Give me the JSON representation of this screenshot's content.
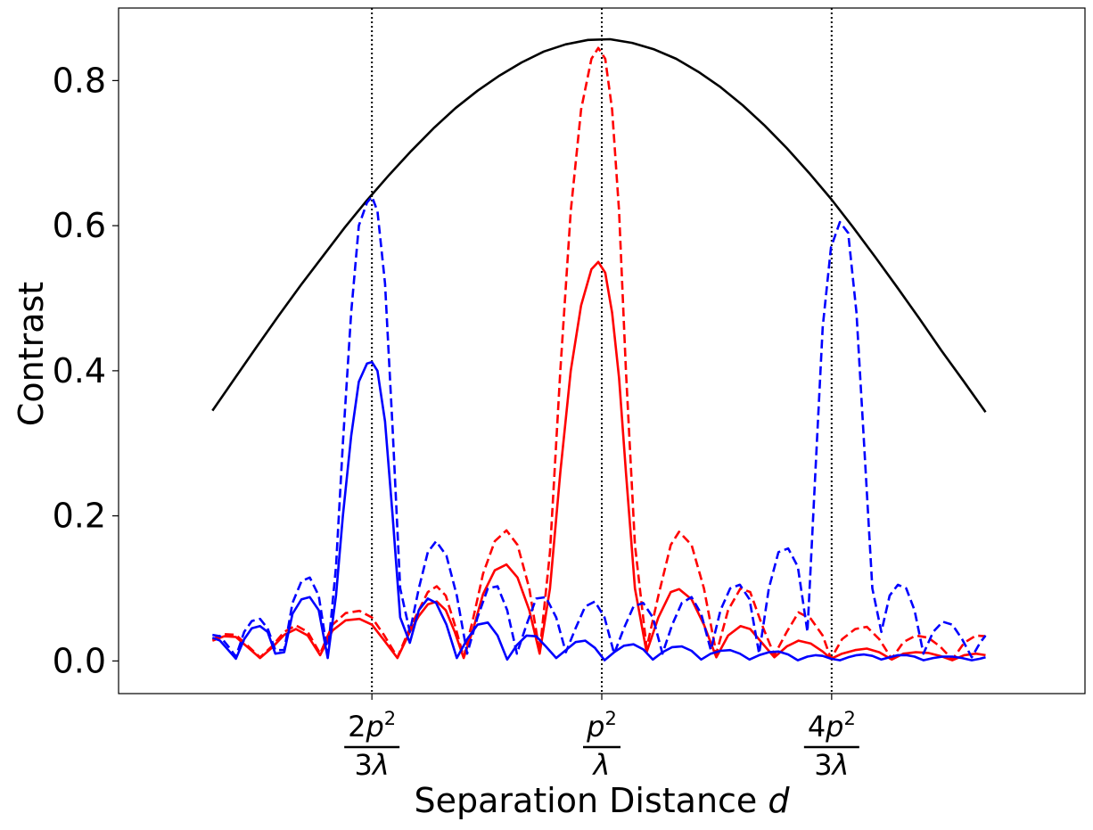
{
  "chart_data": {
    "type": "line",
    "title": "",
    "xlabel": "Separation Distance",
    "xlabel_var": "d",
    "ylabel": "Contrast",
    "xlim": [
      0.93,
      1.07
    ],
    "ylim": [
      -0.045,
      0.9
    ],
    "grid": false,
    "legend": "none",
    "yticks": [
      {
        "value": 0.0,
        "label": "0.0"
      },
      {
        "value": 0.2,
        "label": "0.2"
      },
      {
        "value": 0.4,
        "label": "0.4"
      },
      {
        "value": 0.6,
        "label": "0.6"
      },
      {
        "value": 0.8,
        "label": "0.8"
      }
    ],
    "xticks": [
      {
        "value": 0.9667,
        "numerator_coef": "2",
        "numerator_var": "p",
        "numerator_exp": "2",
        "denominator_coef": "3",
        "denominator_var": "λ"
      },
      {
        "value": 1.0,
        "numerator_coef": "",
        "numerator_var": "p",
        "numerator_exp": "2",
        "denominator_coef": "",
        "denominator_var": "λ"
      },
      {
        "value": 1.0333,
        "numerator_coef": "4",
        "numerator_var": "p",
        "numerator_exp": "2",
        "denominator_coef": "3",
        "denominator_var": "λ"
      }
    ],
    "vlines": [
      0.9667,
      1.0,
      1.0333
    ],
    "series": [
      {
        "color": "#000000",
        "style": "solid",
        "x": [
          0.9436,
          0.9468,
          0.95,
          0.9532,
          0.9564,
          0.9596,
          0.9628,
          0.966,
          0.9692,
          0.9724,
          0.9756,
          0.9788,
          0.982,
          0.9852,
          0.9884,
          0.9916,
          0.9948,
          0.998,
          1.0012,
          1.0044,
          1.0076,
          1.0108,
          1.014,
          1.0172,
          1.0204,
          1.0236,
          1.0268,
          1.03,
          1.0332,
          1.0364,
          1.0396,
          1.0428,
          1.046,
          1.0492,
          1.0524,
          1.0556
        ],
        "y": [
          0.345,
          0.389,
          0.433,
          0.476,
          0.518,
          0.558,
          0.598,
          0.635,
          0.67,
          0.703,
          0.734,
          0.762,
          0.786,
          0.807,
          0.825,
          0.84,
          0.85,
          0.856,
          0.857,
          0.852,
          0.843,
          0.83,
          0.812,
          0.791,
          0.766,
          0.738,
          0.707,
          0.673,
          0.637,
          0.598,
          0.557,
          0.515,
          0.472,
          0.428,
          0.386,
          0.343
        ]
      },
      {
        "color": "#ff0000",
        "style": "dashed",
        "x": [
          0.9436,
          0.9453,
          0.947,
          0.9488,
          0.9505,
          0.9522,
          0.954,
          0.9557,
          0.9574,
          0.9592,
          0.961,
          0.9629,
          0.9649,
          0.9667,
          0.9685,
          0.9704,
          0.9722,
          0.9735,
          0.9748,
          0.9761,
          0.9774,
          0.9787,
          0.98,
          0.9814,
          0.9828,
          0.9845,
          0.9862,
          0.9878,
          0.9895,
          0.991,
          0.9925,
          0.994,
          0.9955,
          0.997,
          0.9985,
          0.9995,
          1.0005,
          1.0015,
          1.0025,
          1.0035,
          1.0048,
          1.0065,
          1.0082,
          1.01,
          1.0112,
          1.013,
          1.0148,
          1.0166,
          1.0183,
          1.0201,
          1.0215,
          1.0232,
          1.025,
          1.0268,
          1.0285,
          1.0303,
          1.032,
          1.0332,
          1.0348,
          1.0367,
          1.0384,
          1.0402,
          1.042,
          1.0437,
          1.0455,
          1.0473,
          1.049,
          1.0508,
          1.0525,
          1.0542,
          1.0556
        ],
        "y": [
          0.03,
          0.037,
          0.036,
          0.02,
          0.005,
          0.02,
          0.04,
          0.049,
          0.04,
          0.01,
          0.05,
          0.066,
          0.069,
          0.06,
          0.035,
          0.005,
          0.045,
          0.07,
          0.095,
          0.103,
          0.09,
          0.05,
          0.005,
          0.06,
          0.12,
          0.165,
          0.18,
          0.16,
          0.1,
          0.012,
          0.15,
          0.4,
          0.62,
          0.76,
          0.83,
          0.845,
          0.83,
          0.76,
          0.62,
          0.4,
          0.16,
          0.018,
          0.09,
          0.16,
          0.178,
          0.16,
          0.1,
          0.01,
          0.07,
          0.1,
          0.095,
          0.05,
          0.008,
          0.04,
          0.067,
          0.058,
          0.035,
          0.003,
          0.03,
          0.044,
          0.047,
          0.03,
          0.003,
          0.026,
          0.035,
          0.032,
          0.02,
          0.002,
          0.025,
          0.035,
          0.034
        ]
      },
      {
        "color": "#ff0000",
        "style": "solid",
        "x": [
          0.9436,
          0.9453,
          0.947,
          0.9488,
          0.9505,
          0.9522,
          0.954,
          0.9557,
          0.9574,
          0.9592,
          0.961,
          0.9629,
          0.9649,
          0.9667,
          0.9685,
          0.9704,
          0.9722,
          0.9735,
          0.9748,
          0.9761,
          0.9774,
          0.9787,
          0.98,
          0.9814,
          0.9828,
          0.9845,
          0.9862,
          0.9878,
          0.9895,
          0.991,
          0.9925,
          0.994,
          0.9955,
          0.997,
          0.9985,
          0.9995,
          1.0005,
          1.0015,
          1.0025,
          1.0035,
          1.0048,
          1.0065,
          1.0082,
          1.01,
          1.0112,
          1.013,
          1.0148,
          1.0166,
          1.0183,
          1.0201,
          1.0215,
          1.0232,
          1.025,
          1.0268,
          1.0285,
          1.0303,
          1.032,
          1.0332,
          1.0348,
          1.0367,
          1.0384,
          1.0402,
          1.042,
          1.0437,
          1.0455,
          1.0473,
          1.049,
          1.0508,
          1.0525,
          1.0542,
          1.0556
        ],
        "y": [
          0.028,
          0.034,
          0.033,
          0.018,
          0.004,
          0.018,
          0.036,
          0.044,
          0.035,
          0.008,
          0.042,
          0.056,
          0.058,
          0.05,
          0.028,
          0.004,
          0.04,
          0.062,
          0.078,
          0.082,
          0.07,
          0.04,
          0.004,
          0.045,
          0.092,
          0.125,
          0.133,
          0.115,
          0.07,
          0.01,
          0.1,
          0.26,
          0.4,
          0.49,
          0.54,
          0.55,
          0.535,
          0.48,
          0.39,
          0.26,
          0.1,
          0.012,
          0.06,
          0.095,
          0.099,
          0.085,
          0.05,
          0.005,
          0.035,
          0.048,
          0.044,
          0.025,
          0.005,
          0.02,
          0.028,
          0.024,
          0.013,
          0.003,
          0.01,
          0.015,
          0.017,
          0.012,
          0.002,
          0.01,
          0.012,
          0.011,
          0.007,
          0.001,
          0.008,
          0.01,
          0.008
        ]
      },
      {
        "color": "#0000ff",
        "style": "dashed",
        "x": [
          0.9436,
          0.9447,
          0.9459,
          0.947,
          0.9482,
          0.9493,
          0.9505,
          0.9516,
          0.9527,
          0.954,
          0.9552,
          0.9565,
          0.9577,
          0.959,
          0.9603,
          0.9615,
          0.9625,
          0.9637,
          0.9648,
          0.966,
          0.9667,
          0.9675,
          0.9686,
          0.9697,
          0.9708,
          0.9722,
          0.9735,
          0.9748,
          0.976,
          0.9775,
          0.979,
          0.9805,
          0.982,
          0.9835,
          0.9849,
          0.9863,
          0.9877,
          0.9891,
          0.9905,
          0.9919,
          0.9934,
          0.9948,
          0.9962,
          0.9976,
          0.999,
          1.0004,
          1.0018,
          1.0032,
          1.0046,
          1.006,
          1.0074,
          1.0088,
          1.0102,
          1.0116,
          1.013,
          1.0144,
          1.0158,
          1.0172,
          1.0186,
          1.02,
          1.0214,
          1.0228,
          1.0242,
          1.0256,
          1.027,
          1.0284,
          1.0298,
          1.031,
          1.032,
          1.0332,
          1.0345,
          1.0357,
          1.0369,
          1.038,
          1.0392,
          1.0405,
          1.0417,
          1.0429,
          1.0441,
          1.0453,
          1.0466,
          1.048,
          1.0494,
          1.0508,
          1.0522,
          1.0536,
          1.0548,
          1.0556
        ],
        "y": [
          0.036,
          0.034,
          0.02,
          0.006,
          0.04,
          0.055,
          0.058,
          0.045,
          0.015,
          0.015,
          0.08,
          0.11,
          0.115,
          0.09,
          0.01,
          0.13,
          0.3,
          0.48,
          0.6,
          0.632,
          0.64,
          0.62,
          0.52,
          0.32,
          0.1,
          0.04,
          0.1,
          0.15,
          0.165,
          0.145,
          0.09,
          0.01,
          0.06,
          0.1,
          0.103,
          0.07,
          0.01,
          0.05,
          0.086,
          0.088,
          0.06,
          0.012,
          0.045,
          0.075,
          0.082,
          0.06,
          0.01,
          0.045,
          0.075,
          0.08,
          0.06,
          0.01,
          0.05,
          0.08,
          0.088,
          0.065,
          0.015,
          0.07,
          0.1,
          0.105,
          0.085,
          0.01,
          0.1,
          0.15,
          0.155,
          0.13,
          0.04,
          0.27,
          0.46,
          0.57,
          0.605,
          0.59,
          0.48,
          0.3,
          0.1,
          0.04,
          0.09,
          0.105,
          0.1,
          0.07,
          0.01,
          0.04,
          0.054,
          0.05,
          0.03,
          0.005,
          0.025,
          0.035
        ]
      },
      {
        "color": "#0000ff",
        "style": "solid",
        "x": [
          0.9436,
          0.9447,
          0.9459,
          0.947,
          0.9482,
          0.9493,
          0.9505,
          0.9516,
          0.9527,
          0.954,
          0.9552,
          0.9565,
          0.9577,
          0.959,
          0.9603,
          0.9615,
          0.9625,
          0.9637,
          0.9648,
          0.966,
          0.9667,
          0.9675,
          0.9686,
          0.9697,
          0.9708,
          0.9722,
          0.9735,
          0.9748,
          0.976,
          0.9775,
          0.979,
          0.9805,
          0.982,
          0.9835,
          0.9849,
          0.9863,
          0.9877,
          0.9891,
          0.9905,
          0.9919,
          0.9934,
          0.9948,
          0.9962,
          0.9976,
          0.999,
          1.0004,
          1.0018,
          1.0032,
          1.0046,
          1.006,
          1.0074,
          1.0088,
          1.0102,
          1.0116,
          1.013,
          1.0144,
          1.0158,
          1.0172,
          1.0186,
          1.02,
          1.0214,
          1.0228,
          1.0242,
          1.0256,
          1.027,
          1.0284,
          1.0298,
          1.031,
          1.032,
          1.0332,
          1.0345,
          1.0357,
          1.0369,
          1.038,
          1.0392,
          1.0405,
          1.0417,
          1.0429,
          1.0441,
          1.0453,
          1.0466,
          1.048,
          1.0494,
          1.0508,
          1.0522,
          1.0536,
          1.0548,
          1.0556
        ],
        "y": [
          0.032,
          0.028,
          0.015,
          0.003,
          0.03,
          0.045,
          0.048,
          0.04,
          0.01,
          0.012,
          0.065,
          0.085,
          0.088,
          0.07,
          0.004,
          0.09,
          0.2,
          0.31,
          0.385,
          0.41,
          0.412,
          0.4,
          0.33,
          0.2,
          0.06,
          0.025,
          0.07,
          0.086,
          0.08,
          0.05,
          0.004,
          0.03,
          0.05,
          0.053,
          0.035,
          0.002,
          0.022,
          0.035,
          0.034,
          0.02,
          0.004,
          0.015,
          0.026,
          0.028,
          0.018,
          0.001,
          0.012,
          0.021,
          0.023,
          0.016,
          0.002,
          0.012,
          0.019,
          0.02,
          0.014,
          0.002,
          0.01,
          0.014,
          0.015,
          0.01,
          0.002,
          0.008,
          0.012,
          0.013,
          0.009,
          0.001,
          0.006,
          0.008,
          0.007,
          0.003,
          0.001,
          0.005,
          0.008,
          0.009,
          0.007,
          0.002,
          0.005,
          0.008,
          0.008,
          0.006,
          0.001,
          0.004,
          0.006,
          0.006,
          0.004,
          0.001,
          0.003,
          0.005
        ]
      }
    ]
  }
}
